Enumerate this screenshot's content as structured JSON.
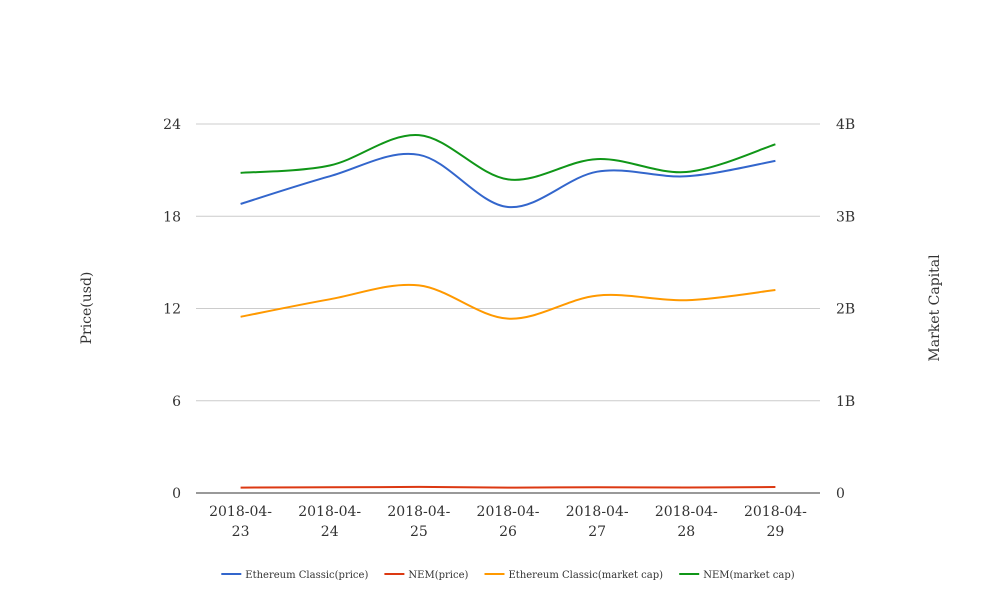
{
  "chart_data": {
    "type": "line",
    "categories": [
      [
        "2018-04-",
        "23"
      ],
      [
        "2018-04-",
        "24"
      ],
      [
        "2018-04-",
        "25"
      ],
      [
        "2018-04-",
        "26"
      ],
      [
        "2018-04-",
        "27"
      ],
      [
        "2018-04-",
        "28"
      ],
      [
        "2018-04-",
        "29"
      ]
    ],
    "y_left": {
      "label": "Price(usd)",
      "ticks": [
        "0",
        "6",
        "12",
        "18",
        "24"
      ],
      "range": [
        0,
        24
      ]
    },
    "y_right": {
      "label": "Market Capital",
      "ticks": [
        "0",
        "1B",
        "2B",
        "3B",
        "4B"
      ],
      "range": [
        0,
        4000000000
      ]
    },
    "grid": true,
    "legend_position": "bottom",
    "series": [
      {
        "name": "Ethereum Classic(price)",
        "axis": "left",
        "color": "#3366cc",
        "values": [
          18.8,
          20.6,
          22.0,
          18.6,
          20.9,
          20.6,
          21.6
        ]
      },
      {
        "name": "NEM(price)",
        "axis": "left",
        "color": "#dc3912",
        "values": [
          0.35,
          0.37,
          0.4,
          0.35,
          0.38,
          0.36,
          0.39
        ]
      },
      {
        "name": "Ethereum Classic(market cap)",
        "axis": "right",
        "color": "#ff9900",
        "values": [
          1910000000,
          2100000000,
          2250000000,
          1890000000,
          2140000000,
          2090000000,
          2200000000
        ]
      },
      {
        "name": "NEM(market cap)",
        "axis": "right",
        "color": "#109618",
        "values": [
          3470000000,
          3550000000,
          3880000000,
          3400000000,
          3620000000,
          3480000000,
          3780000000
        ]
      }
    ]
  }
}
